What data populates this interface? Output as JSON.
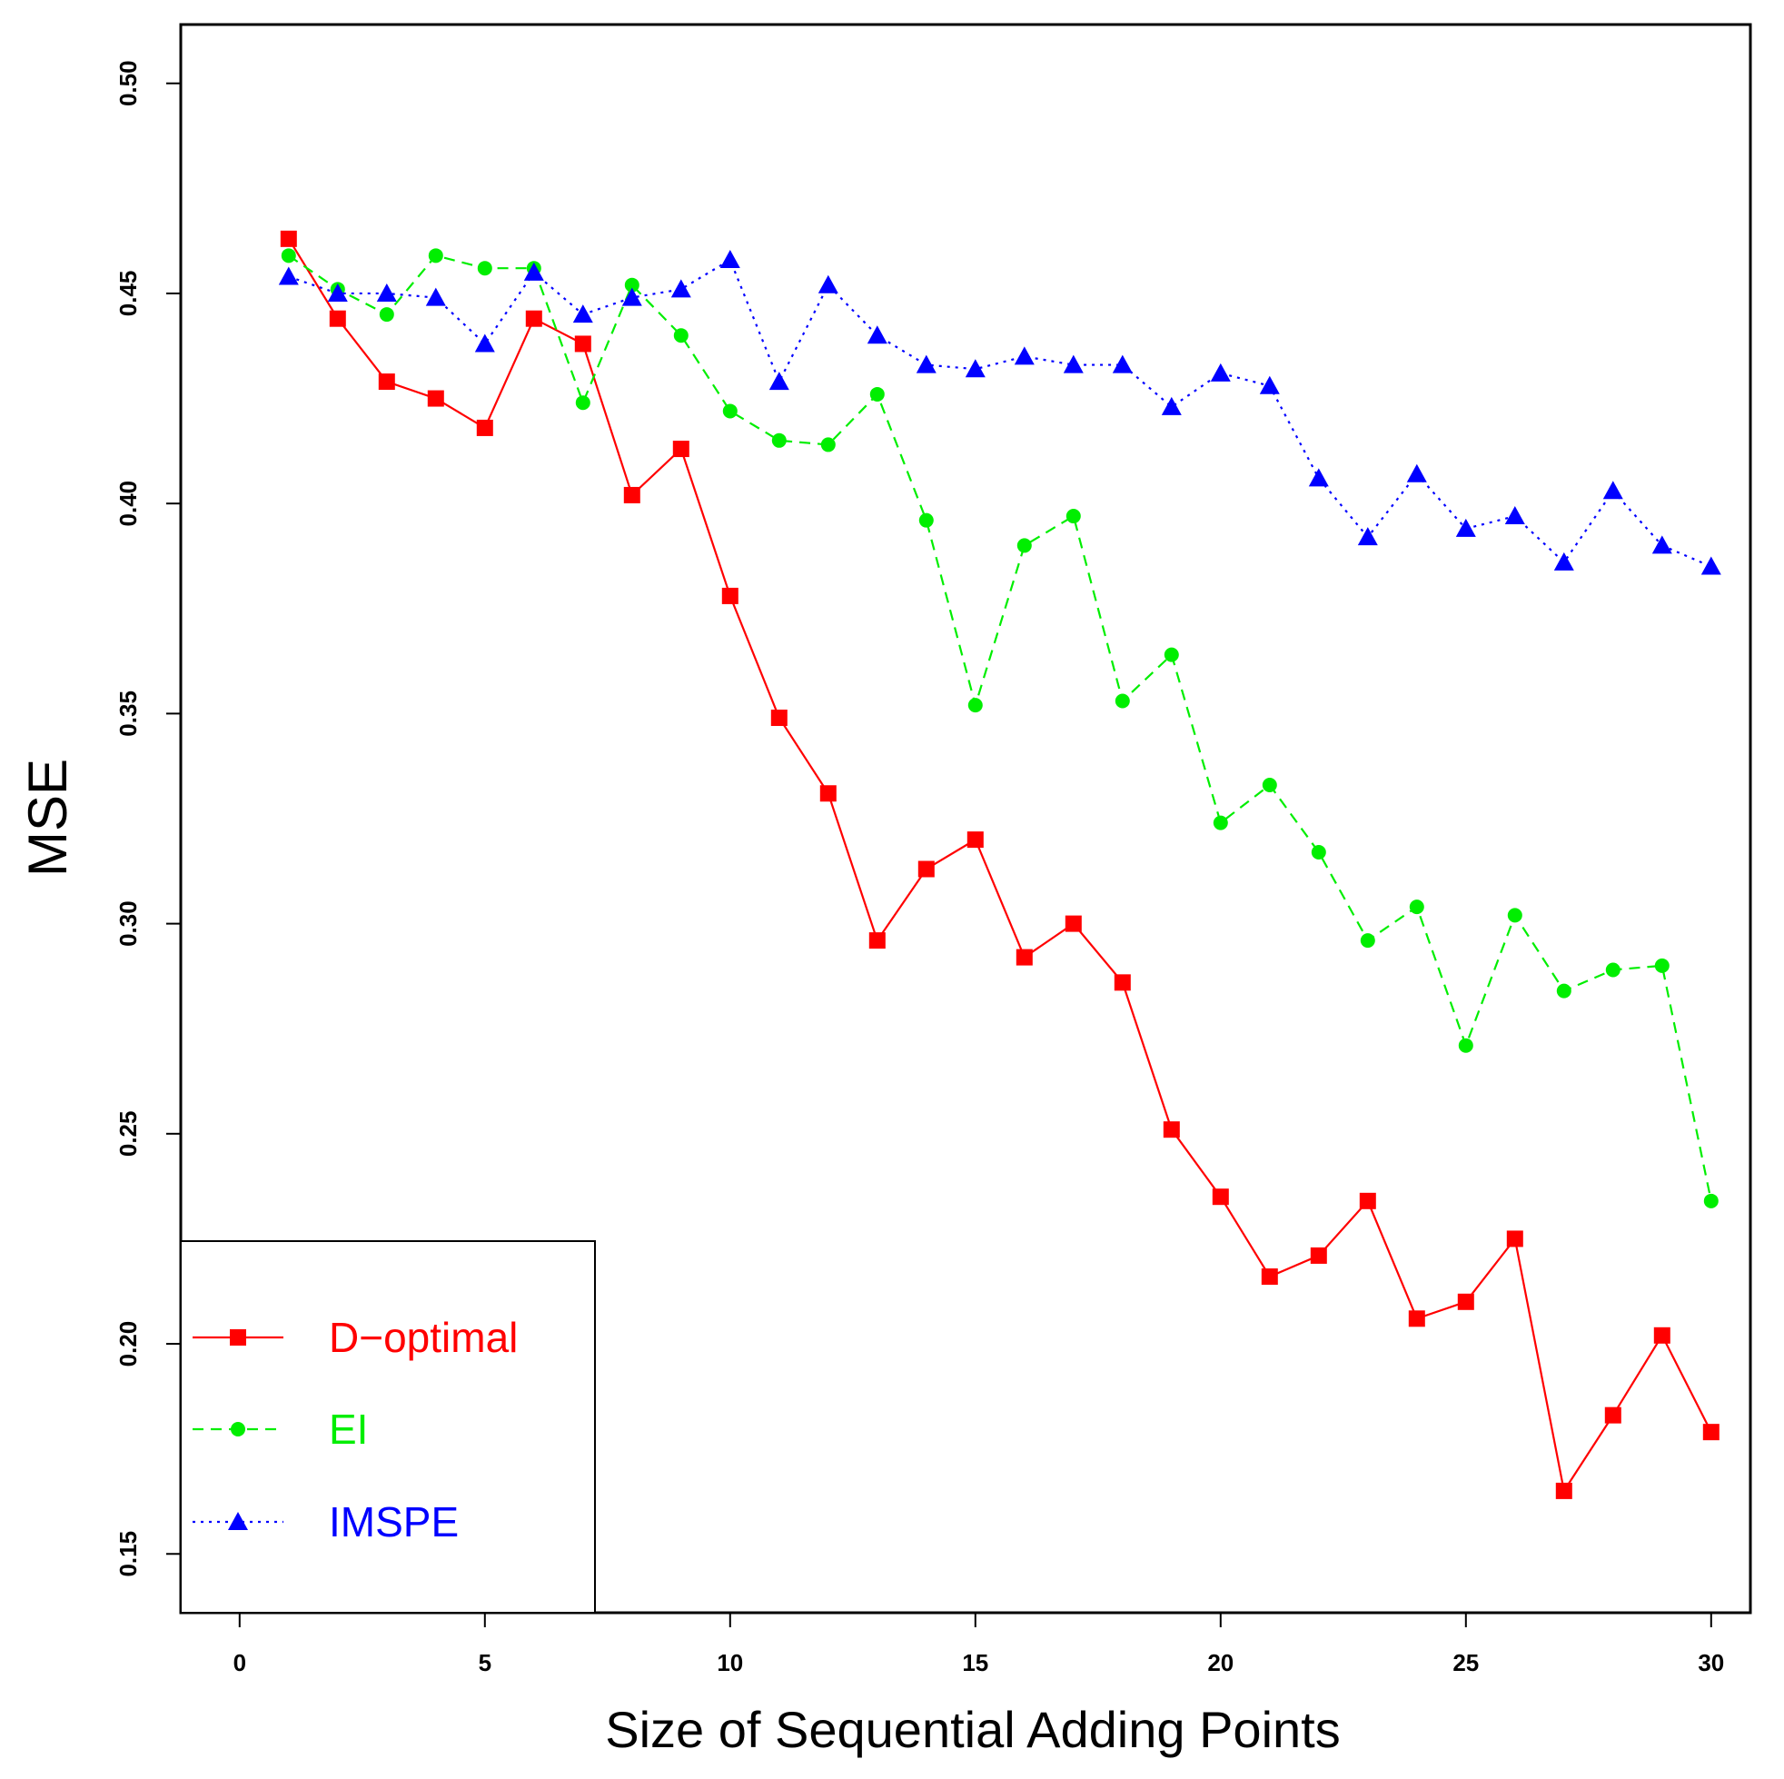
{
  "chart_data": {
    "type": "line",
    "title": "",
    "xlabel": "Size of Sequential Adding Points",
    "ylabel": "MSE",
    "xlim": [
      -1.2,
      30.8
    ],
    "ylim": [
      0.136,
      0.514
    ],
    "xticks": [
      0,
      5,
      10,
      15,
      20,
      25,
      30
    ],
    "yticks": [
      0.15,
      0.2,
      0.25,
      0.3,
      0.35,
      0.4,
      0.45,
      0.5
    ],
    "ytick_labels": [
      "0.15",
      "0.20",
      "0.25",
      "0.30",
      "0.35",
      "0.40",
      "0.45",
      "0.50"
    ],
    "x": [
      1,
      2,
      3,
      4,
      5,
      6,
      7,
      8,
      9,
      10,
      11,
      12,
      13,
      14,
      15,
      16,
      17,
      18,
      19,
      20,
      21,
      22,
      23,
      24,
      25,
      26,
      27,
      28,
      29,
      30
    ],
    "legend_position": "bottom-left",
    "series": [
      {
        "name": "D−optimal",
        "color": "#ff0000",
        "marker": "square",
        "line": "solid",
        "values": [
          0.463,
          0.444,
          0.429,
          0.425,
          0.418,
          0.444,
          0.438,
          0.402,
          0.413,
          0.378,
          0.349,
          0.331,
          0.296,
          0.313,
          0.32,
          0.292,
          0.3,
          0.286,
          0.251,
          0.235,
          0.216,
          0.221,
          0.234,
          0.206,
          0.21,
          0.225,
          0.165,
          0.183,
          0.202,
          0.179
        ]
      },
      {
        "name": "EI",
        "color": "#00ee00",
        "marker": "circle",
        "line": "dashed",
        "values": [
          0.459,
          0.451,
          0.445,
          0.459,
          0.456,
          0.456,
          0.424,
          0.452,
          0.44,
          0.422,
          0.415,
          0.414,
          0.426,
          0.396,
          0.352,
          0.39,
          0.397,
          0.353,
          0.364,
          0.324,
          0.333,
          0.317,
          0.296,
          0.304,
          0.271,
          0.302,
          0.284,
          0.289,
          0.29,
          0.234
        ]
      },
      {
        "name": "IMSPE",
        "color": "#0000ff",
        "marker": "triangle",
        "line": "dotted",
        "values": [
          0.454,
          0.45,
          0.45,
          0.449,
          0.438,
          0.455,
          0.445,
          0.449,
          0.451,
          0.458,
          0.429,
          0.452,
          0.44,
          0.433,
          0.432,
          0.435,
          0.433,
          0.433,
          0.423,
          0.431,
          0.428,
          0.406,
          0.392,
          0.407,
          0.394,
          0.397,
          0.386,
          0.403,
          0.39,
          0.385
        ]
      }
    ]
  }
}
